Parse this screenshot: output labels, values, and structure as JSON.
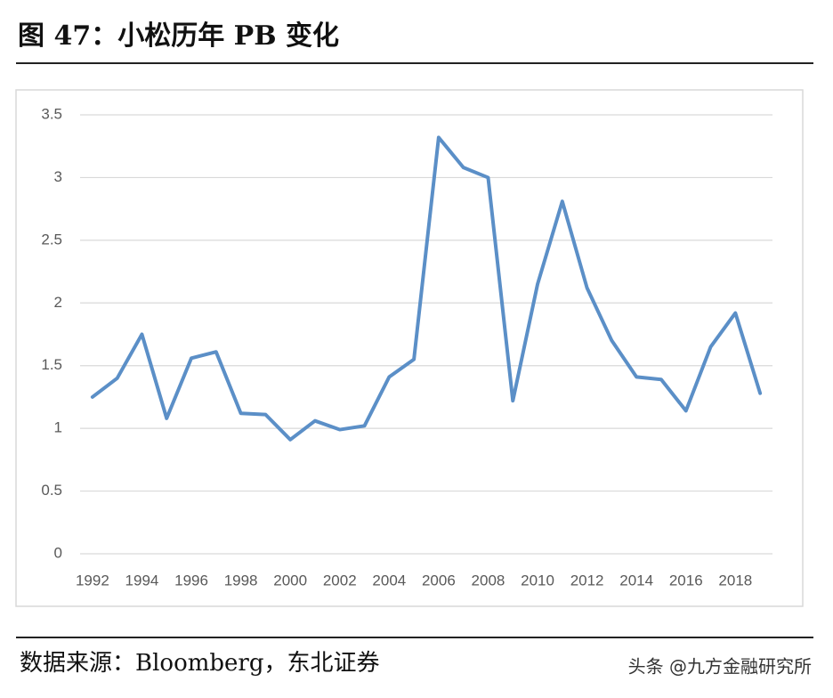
{
  "chart_data": {
    "type": "line",
    "title": "图 47：小松历年 PB 变化",
    "categories": [
      "1992",
      null,
      "1994",
      null,
      "1996",
      null,
      "1998",
      null,
      "2000",
      null,
      "2002",
      null,
      "2004",
      null,
      "2006",
      null,
      "2008",
      null,
      "2010",
      null,
      "2012",
      null,
      "2014",
      null,
      "2016",
      null,
      "2018",
      null
    ],
    "series": [
      {
        "color": "#5b8fc7",
        "values": [
          1.25,
          1.4,
          1.75,
          1.08,
          1.56,
          1.61,
          1.12,
          1.11,
          0.91,
          1.06,
          0.99,
          1.02,
          1.41,
          1.55,
          3.32,
          3.08,
          3.0,
          1.22,
          2.15,
          2.81,
          2.12,
          1.7,
          1.41,
          1.39,
          1.14,
          1.65,
          1.92,
          1.28
        ]
      }
    ],
    "ylim": [
      0,
      3.5
    ],
    "yticks": [
      0,
      0.5,
      1,
      1.5,
      2,
      2.5,
      3,
      3.5
    ],
    "grid": true
  },
  "source": "数据来源：Bloomberg，东北证券",
  "watermark": "头条 @九方金融研究所"
}
